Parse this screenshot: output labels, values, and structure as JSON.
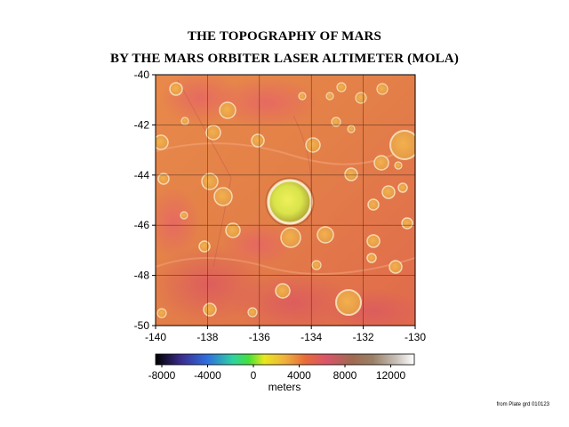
{
  "title_line1": "THE TOPOGRAPHY OF MARS",
  "title_line2": "BY THE MARS ORBITER LASER ALTIMETER (MOLA)",
  "map": {
    "x_ticks": [
      "-140",
      "-138",
      "-136",
      "-134",
      "-132",
      "-130"
    ],
    "y_ticks": [
      "-40",
      "-42",
      "-44",
      "-46",
      "-48",
      "-50"
    ]
  },
  "colorbar": {
    "ticks": [
      "-8000",
      "-4000",
      "0",
      "4000",
      "8000",
      "12000"
    ],
    "label": "meters",
    "colors": [
      "#000000",
      "#3b2d8f",
      "#2f6fe0",
      "#2fd3a0",
      "#46e03a",
      "#e8e81e",
      "#f0b03c",
      "#e86a3a",
      "#d9556a",
      "#a06a50",
      "#9a8068",
      "#c8c0b8",
      "#ffffff"
    ]
  },
  "credit": "from Plate grd 010123"
}
